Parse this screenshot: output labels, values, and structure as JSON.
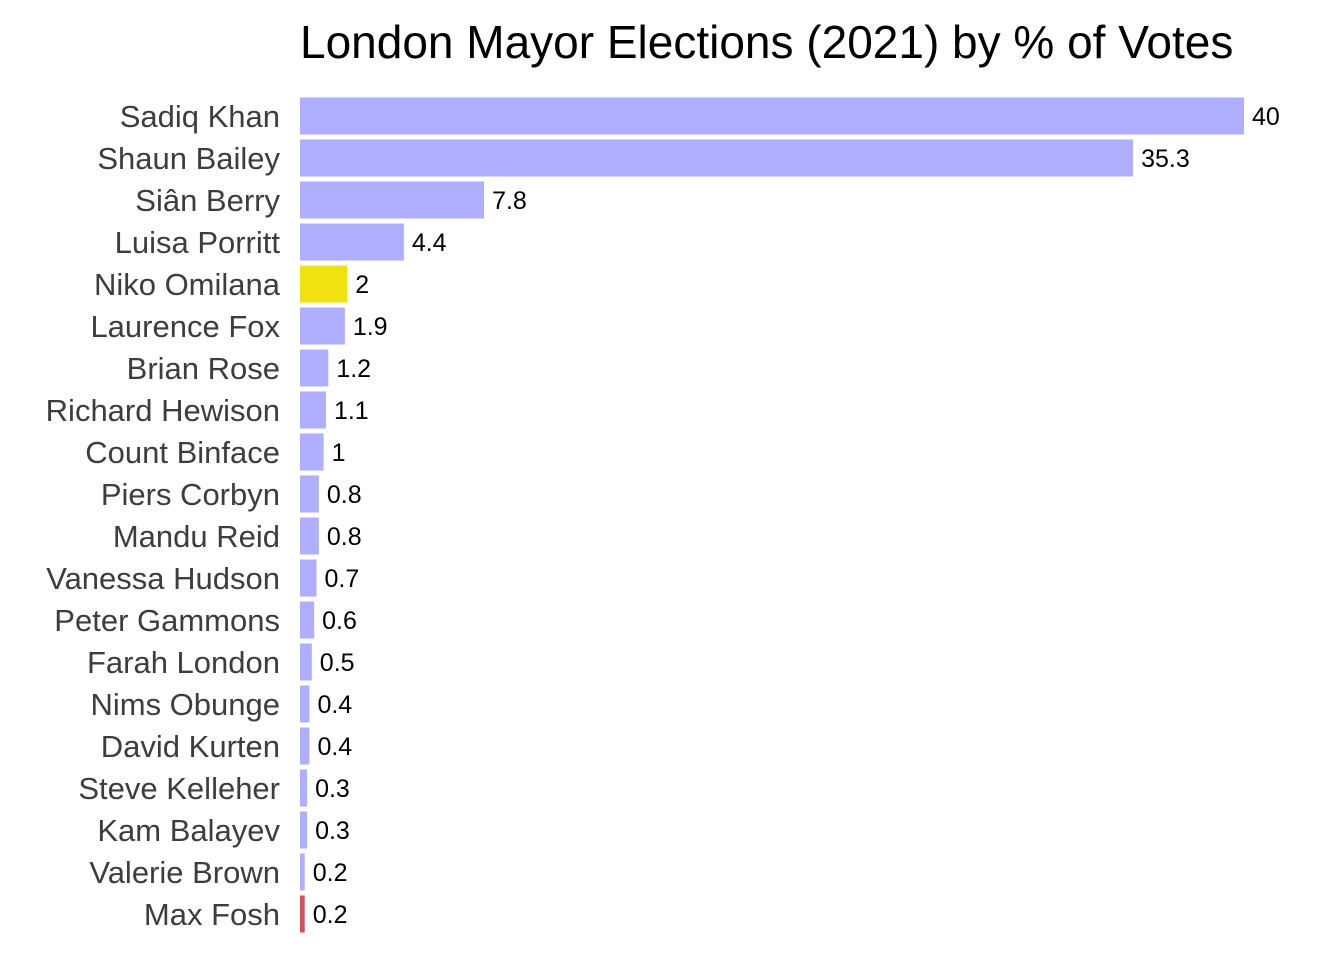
{
  "chart_data": {
    "type": "bar",
    "orientation": "horizontal",
    "title": "London Mayor Elections (2021) by % of Votes",
    "xlabel": "",
    "ylabel": "",
    "grid": false,
    "xlim": [
      0,
      40
    ],
    "categories": [
      "Sadiq Khan",
      "Shaun Bailey",
      "Siân Berry",
      "Luisa Porritt",
      "Niko Omilana",
      "Laurence Fox",
      "Brian Rose",
      "Richard Hewison",
      "Count Binface",
      "Piers Corbyn",
      "Mandu Reid",
      "Vanessa Hudson",
      "Peter Gammons",
      "Farah London",
      "Nims Obunge",
      "David Kurten",
      "Steve Kelleher",
      "Kam Balayev",
      "Valerie Brown",
      "Max Fosh"
    ],
    "values": [
      40,
      35.3,
      7.8,
      4.4,
      2,
      1.9,
      1.2,
      1.1,
      1,
      0.8,
      0.8,
      0.7,
      0.6,
      0.5,
      0.4,
      0.4,
      0.3,
      0.3,
      0.2,
      0.2
    ],
    "value_labels": [
      "40",
      "35.3",
      "7.8",
      "4.4",
      "2",
      "1.9",
      "1.2",
      "1.1",
      "1",
      "0.8",
      "0.8",
      "0.7",
      "0.6",
      "0.5",
      "0.4",
      "0.4",
      "0.3",
      "0.3",
      "0.2",
      "0.2"
    ],
    "colors": {
      "default": "#b0aefe",
      "Niko Omilana": "#f0e210",
      "Max Fosh": "#d1525d"
    },
    "label_color": "#3d3d3d",
    "value_label_color": "#000000"
  }
}
